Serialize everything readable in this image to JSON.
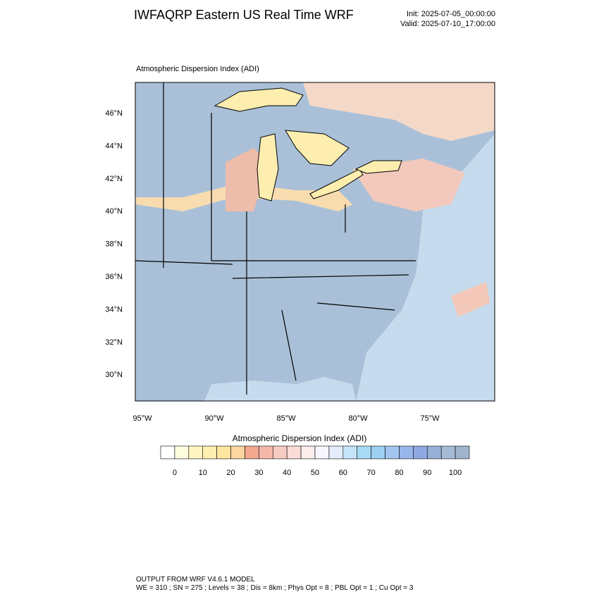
{
  "header": {
    "title": "IWFAQRP Eastern US Real Time WRF",
    "init": "Init: 2025-07-05_00:00:00",
    "valid": "Valid: 2025-07-10_17:00:00"
  },
  "map": {
    "subtitle": "Atmospheric Dispersion Index   (ADI)",
    "lat_labels": [
      "46°N",
      "44°N",
      "42°N",
      "40°N",
      "38°N",
      "36°N",
      "34°N",
      "32°N",
      "30°N"
    ],
    "lon_labels": [
      "95°W",
      "90°W",
      "85°W",
      "80°W",
      "75°W"
    ]
  },
  "colorbar": {
    "title": "Atmospheric Dispersion Index  (ADI)",
    "lim": [
      -5,
      105
    ],
    "ticks": [
      0,
      10,
      20,
      30,
      40,
      50,
      60,
      70,
      80,
      90,
      100
    ],
    "colors": [
      "#ffffff",
      "#fffde0",
      "#fff6c2",
      "#ffefb0",
      "#ffe6a0",
      "#fdd6a0",
      "#f5a890",
      "#f4b8aa",
      "#f6cbc2",
      "#fadcd8",
      "#fdeeee",
      "#f6f6ff",
      "#e4ecfb",
      "#c6e4fa",
      "#a8daf5",
      "#9ccff2",
      "#a2c6f0",
      "#98b6ec",
      "#8ea8e2",
      "#98b0d8",
      "#a6bad6",
      "#a0b4cc"
    ]
  },
  "footer": {
    "line1": "OUTPUT FROM WRF V4.6.1 MODEL",
    "line2": "WE = 310 ; SN = 275 ; Levels = 38 ; Dis = 8km ; Phys Opt = 8 ; PBL Opt = 1 ; Cu Opt = 3"
  }
}
